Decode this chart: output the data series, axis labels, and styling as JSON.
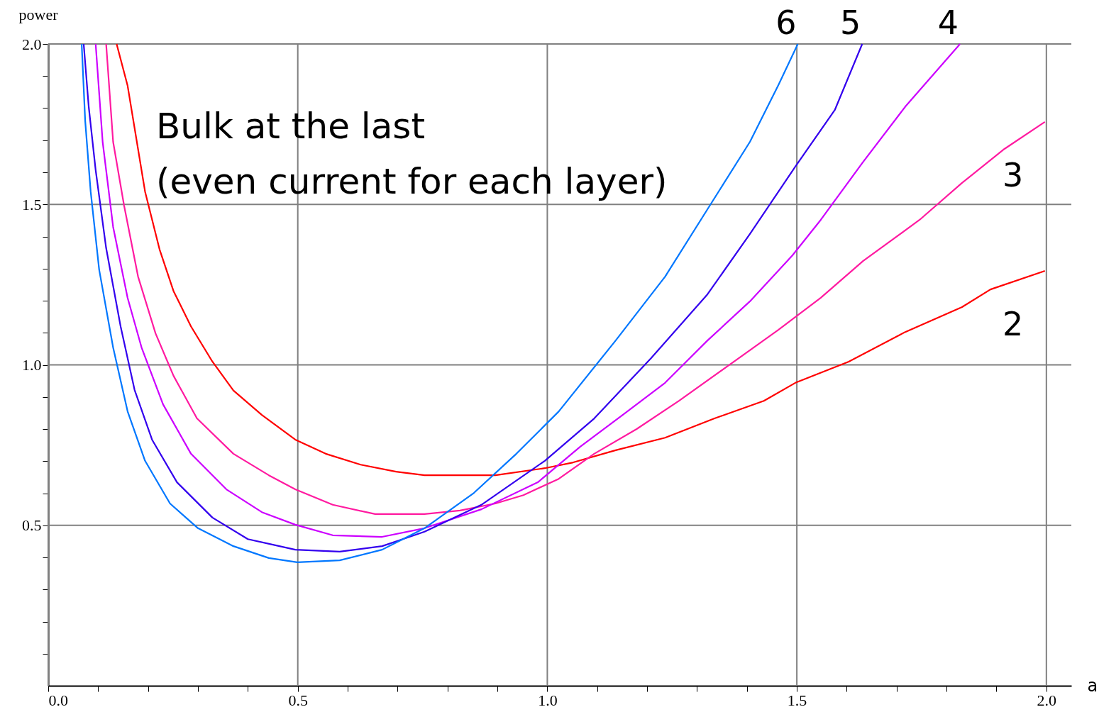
{
  "chart_data": {
    "type": "line",
    "xlabel": "a",
    "ylabel": "power",
    "annotations": [
      "Bulk at the last",
      "(even current for each layer)"
    ],
    "xlim": [
      0,
      2.05
    ],
    "ylim": [
      0,
      2.0
    ],
    "xticks": [
      {
        "value": 0,
        "label": "0.0"
      },
      {
        "value": 0.1,
        "label": null
      },
      {
        "value": 0.2,
        "label": null
      },
      {
        "value": 0.3,
        "label": null
      },
      {
        "value": 0.4,
        "label": null
      },
      0.5,
      {
        "value": 0.6,
        "label": null
      },
      {
        "value": 0.7,
        "label": null
      },
      {
        "value": 0.8,
        "label": null
      },
      {
        "value": 0.9,
        "label": null
      },
      {
        "value": 1.0,
        "label": "1.0"
      },
      {
        "value": 1.1,
        "label": null
      },
      {
        "value": 1.2,
        "label": null
      },
      {
        "value": 1.3,
        "label": null
      },
      {
        "value": 1.4,
        "label": null
      },
      1.5,
      {
        "value": 1.6,
        "label": null
      },
      {
        "value": 1.7,
        "label": null
      },
      {
        "value": 1.8,
        "label": null
      },
      {
        "value": 1.9,
        "label": null
      },
      {
        "value": 2.0,
        "label": "2.0"
      }
    ],
    "yticks": [
      {
        "value": 0.1,
        "label": null
      },
      {
        "value": 0.2,
        "label": null
      },
      {
        "value": 0.3,
        "label": null
      },
      {
        "value": 0.4,
        "label": null
      },
      0.5,
      {
        "value": 0.6,
        "label": null
      },
      {
        "value": 0.7,
        "label": null
      },
      {
        "value": 0.8,
        "label": null
      },
      {
        "value": 0.9,
        "label": null
      },
      {
        "value": 1.0,
        "label": "1.0"
      },
      {
        "value": 1.1,
        "label": null
      },
      {
        "value": 1.2,
        "label": null
      },
      {
        "value": 1.3,
        "label": null
      },
      {
        "value": 1.4,
        "label": null
      },
      1.5,
      {
        "value": 1.6,
        "label": null
      },
      {
        "value": 1.7,
        "label": null
      },
      {
        "value": 1.8,
        "label": null
      },
      {
        "value": 1.9,
        "label": null
      },
      {
        "value": 2.0,
        "label": "2.0"
      }
    ],
    "grid": true,
    "legend": false,
    "marker": "none",
    "line_style": "solid",
    "series": [
      {
        "name": "2",
        "color": "#ff0000",
        "x": [
          0.137,
          0.159,
          0.194,
          0.223,
          0.251,
          0.286,
          0.329,
          0.371,
          0.428,
          0.495,
          0.556,
          0.626,
          0.697,
          0.754,
          0.896,
          0.995,
          1.052,
          1.137,
          1.236,
          1.335,
          1.434,
          1.497,
          1.604,
          1.718,
          1.831,
          1.888,
          1.997
        ],
        "values": [
          2.0,
          1.87,
          1.54,
          1.36,
          1.23,
          1.12,
          1.01,
          0.92,
          0.844,
          0.767,
          0.723,
          0.689,
          0.667,
          0.656,
          0.656,
          0.678,
          0.696,
          0.734,
          0.773,
          0.833,
          0.888,
          0.944,
          1.01,
          1.103,
          1.18,
          1.235,
          1.293
        ]
      },
      {
        "name": "3",
        "color": "#ff1aa0",
        "x": [
          0.116,
          0.13,
          0.152,
          0.18,
          0.215,
          0.251,
          0.298,
          0.371,
          0.442,
          0.495,
          0.57,
          0.655,
          0.754,
          0.825,
          0.896,
          0.952,
          1.023,
          1.094,
          1.179,
          1.264,
          1.364,
          1.463,
          1.548,
          1.633,
          1.746,
          1.831,
          1.916,
          1.997
        ],
        "values": [
          2.0,
          1.695,
          1.496,
          1.275,
          1.098,
          0.966,
          0.833,
          0.723,
          0.656,
          0.612,
          0.564,
          0.535,
          0.535,
          0.546,
          0.568,
          0.594,
          0.645,
          0.723,
          0.8,
          0.888,
          0.999,
          1.109,
          1.209,
          1.324,
          1.452,
          1.567,
          1.673,
          1.757
        ]
      },
      {
        "name": "4",
        "color": "#cc00ff",
        "x": [
          0.095,
          0.109,
          0.13,
          0.159,
          0.187,
          0.23,
          0.286,
          0.357,
          0.428,
          0.495,
          0.57,
          0.669,
          0.754,
          0.868,
          0.981,
          1.066,
          1.151,
          1.236,
          1.321,
          1.406,
          1.491,
          1.548,
          1.633,
          1.718,
          1.827
        ],
        "values": [
          2.0,
          1.695,
          1.43,
          1.209,
          1.054,
          0.877,
          0.723,
          0.612,
          0.541,
          0.502,
          0.469,
          0.464,
          0.491,
          0.55,
          0.634,
          0.745,
          0.844,
          0.944,
          1.076,
          1.198,
          1.341,
          1.452,
          1.633,
          1.806,
          2.0
        ]
      },
      {
        "name": "5",
        "color": "#3300ee",
        "x": [
          0.071,
          0.081,
          0.095,
          0.116,
          0.145,
          0.173,
          0.208,
          0.258,
          0.329,
          0.4,
          0.495,
          0.584,
          0.669,
          0.754,
          0.868,
          0.995,
          1.094,
          1.208,
          1.321,
          1.406,
          1.497,
          1.576,
          1.631
        ],
        "values": [
          2.0,
          1.806,
          1.607,
          1.364,
          1.12,
          0.922,
          0.767,
          0.634,
          0.524,
          0.457,
          0.424,
          0.418,
          0.435,
          0.48,
          0.564,
          0.701,
          0.833,
          1.021,
          1.22,
          1.408,
          1.618,
          1.794,
          2.0
        ]
      },
      {
        "name": "6",
        "color": "#0077ff",
        "x": [
          0.067,
          0.074,
          0.085,
          0.102,
          0.13,
          0.159,
          0.194,
          0.244,
          0.3,
          0.371,
          0.442,
          0.499,
          0.584,
          0.669,
          0.754,
          0.853,
          0.938,
          1.023,
          1.137,
          1.236,
          1.321,
          1.406,
          1.463,
          1.502
        ],
        "values": [
          2.0,
          1.761,
          1.54,
          1.297,
          1.054,
          0.855,
          0.701,
          0.568,
          0.491,
          0.435,
          0.398,
          0.385,
          0.391,
          0.424,
          0.491,
          0.601,
          0.723,
          0.855,
          1.076,
          1.275,
          1.485,
          1.695,
          1.872,
          2.0
        ]
      }
    ]
  }
}
